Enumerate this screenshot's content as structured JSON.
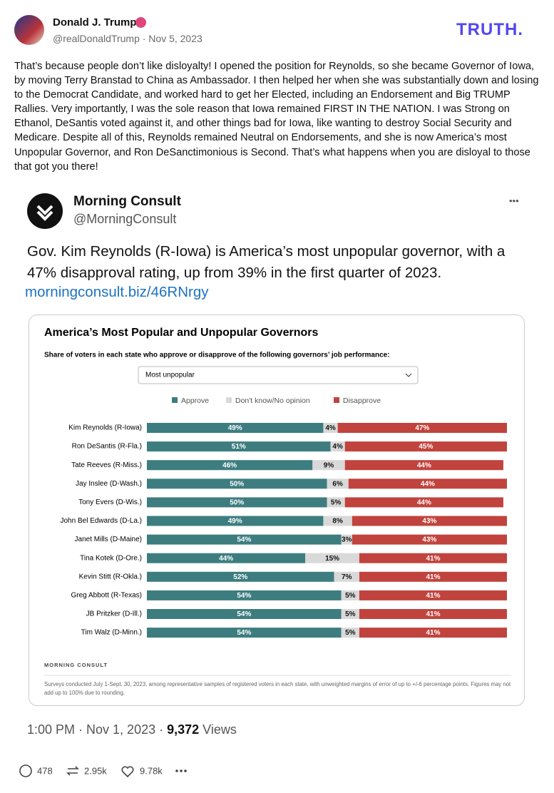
{
  "post": {
    "author": "Donald J. Trump",
    "handle": "@realDonaldTrump · Nov 5, 2023",
    "brand": "TRUTH.",
    "text": "That’s because people don’t like disloyalty! I opened the position for Reynolds, so she became Governor of Iowa, by moving Terry Branstad to China as Ambassador. I then helped her when she was substantially down and losing to the Democrat Candidate, and worked hard to get her Elected, including an Endorsement and Big TRUMP Rallies. Very importantly, I was the sole reason that Iowa remained FIRST IN THE NATION. I was Strong on Ethanol, DeSantis voted against it, and other things bad for Iowa, like wanting to destroy Social Security and Medicare. Despite all of this, Reynolds remained Neutral on Endorsements, and she is now America’s most Unpopular Governor, and Ron DeSanctimonious is Second. That’s what happens when you are disloyal to those that got you there!"
  },
  "tweet": {
    "author": "Morning Consult",
    "handle": "@MorningConsult",
    "more": "•••",
    "text": "Gov. Kim Reynolds (R-Iowa) is America’s most unpopular governor, with a 47% disapproval rating, up from 39% in the first quarter of 2023.",
    "link": "morningconsult.biz/46RNrgy",
    "timestamp": "1:00 PM · Nov 1, 2023 · ",
    "views": "9,372",
    "views_label": " Views"
  },
  "chart_data": {
    "type": "stacked-bar",
    "title": "America’s Most Popular and Unpopular Governors",
    "subtitle": "Share of voters in each state who approve or disapprove of the following governors’ job performance:",
    "dropdown": "Most unpopular",
    "categories": [
      "Kim Reynolds (R-Iowa)",
      "Ron DeSantis (R-Fla.)",
      "Tate Reeves (R-Miss.)",
      "Jay Inslee (D-Wash.)",
      "Tony Evers (D-Wis.)",
      "John Bel Edwards (D-La.)",
      "Janet Mills (D-Maine)",
      "Tina Kotek (D-Ore.)",
      "Kevin Stitt (R-Okla.)",
      "Greg Abbott (R-Texas)",
      "JB Pritzker (D-Ill.)",
      "Tim Walz (D-Minn.)"
    ],
    "series": [
      {
        "name": "Approve",
        "color": "#3d7d80",
        "values": [
          49,
          51,
          46,
          50,
          50,
          49,
          54,
          44,
          52,
          54,
          54,
          54
        ],
        "value_labels": [
          "49%",
          "51%",
          "46%",
          "50%",
          "50%",
          "49%",
          "54%",
          "44%",
          "52%",
          "54%",
          "54%",
          "54%"
        ]
      },
      {
        "name": "Don't know/No opinion",
        "color": "#d9d9d9",
        "values": [
          4,
          4,
          9,
          6,
          5,
          8,
          3,
          15,
          7,
          5,
          5,
          5
        ],
        "value_labels": [
          "4%",
          "4%",
          "9%",
          "6%",
          "5%",
          "8%",
          "3%",
          "15%",
          "7%",
          "5%",
          "5%",
          "5%"
        ]
      },
      {
        "name": "Disapprove",
        "color": "#c1433d",
        "values": [
          47,
          45,
          44,
          44,
          44,
          43,
          43,
          41,
          41,
          41,
          41,
          41
        ],
        "value_labels": [
          "47%",
          "45%",
          "44%",
          "44%",
          "44%",
          "43%",
          "43%",
          "41%",
          "41%",
          "41%",
          "41%",
          "41%"
        ]
      }
    ],
    "source": "MORNING CONSULT",
    "note": "Surveys conducted July 1-Sept. 30, 2023, among representative samples of registered voters in each state, with unweighted margins of error of up to +/-6 percentage points. Figures may not add up to 100% due to rounding."
  },
  "actions": {
    "replies": "478",
    "reposts": "2.95k",
    "likes": "9.78k"
  }
}
